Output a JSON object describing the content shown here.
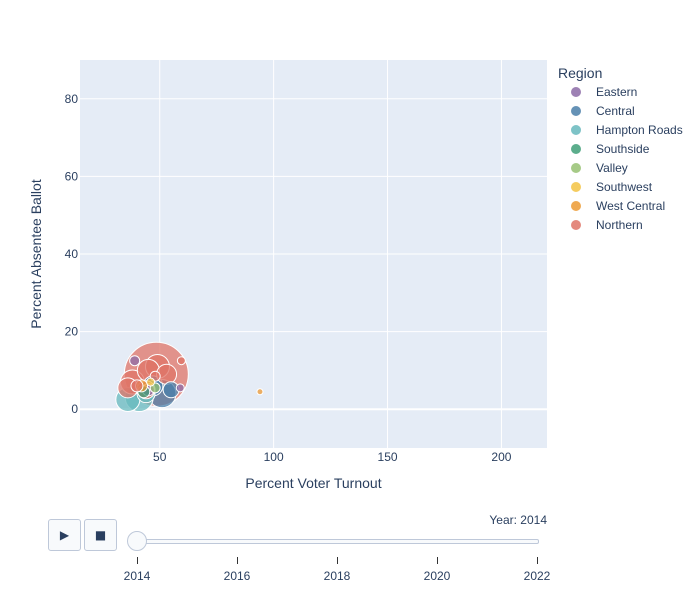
{
  "chart_data": {
    "type": "scatter",
    "xlabel": "Percent Voter Turnout",
    "ylabel": "Percent Absentee Ballot",
    "xlim": [
      15,
      220
    ],
    "ylim": [
      -10,
      90
    ],
    "xticks": [
      50,
      100,
      150,
      200
    ],
    "yticks": [
      0,
      20,
      40,
      60,
      80
    ],
    "grid": true,
    "legend": {
      "title": "Region",
      "placement": "right",
      "entries": [
        {
          "name": "Eastern",
          "color": "#8c6ba7"
        },
        {
          "name": "Central",
          "color": "#4a7fa9"
        },
        {
          "name": "Hampton Roads",
          "color": "#67b9bd"
        },
        {
          "name": "Southside",
          "color": "#3f9f78"
        },
        {
          "name": "Valley",
          "color": "#96c172"
        },
        {
          "name": "Southwest",
          "color": "#f3c343"
        },
        {
          "name": "West Central",
          "color": "#ec9a33"
        },
        {
          "name": "Northern",
          "color": "#df7467"
        }
      ]
    },
    "series": [
      {
        "name": "Eastern",
        "points": [
          {
            "x": 39,
            "y": 12.5,
            "size": 5
          },
          {
            "x": 59,
            "y": 5.5,
            "size": 4
          },
          {
            "x": 45,
            "y": 5,
            "size": 6
          }
        ]
      },
      {
        "name": "Central",
        "points": [
          {
            "x": 51,
            "y": 4,
            "size": 14
          },
          {
            "x": 47,
            "y": 6,
            "size": 10
          },
          {
            "x": 55,
            "y": 5,
            "size": 8
          }
        ]
      },
      {
        "name": "Hampton Roads",
        "points": [
          {
            "x": 36,
            "y": 2.5,
            "size": 12
          },
          {
            "x": 41,
            "y": 3,
            "size": 14
          },
          {
            "x": 44,
            "y": 4,
            "size": 9
          }
        ]
      },
      {
        "name": "Southside",
        "points": [
          {
            "x": 43,
            "y": 4.5,
            "size": 6
          }
        ]
      },
      {
        "name": "Valley",
        "points": [
          {
            "x": 48,
            "y": 5.5,
            "size": 5
          }
        ]
      },
      {
        "name": "Southwest",
        "points": [
          {
            "x": 46,
            "y": 7,
            "size": 4
          }
        ]
      },
      {
        "name": "West Central",
        "points": [
          {
            "x": 94,
            "y": 4.5,
            "size": 3
          },
          {
            "x": 42,
            "y": 6,
            "size": 6
          }
        ]
      },
      {
        "name": "Northern",
        "points": [
          {
            "x": 48.5,
            "y": 9,
            "size": 32
          },
          {
            "x": 38,
            "y": 7,
            "size": 12
          },
          {
            "x": 36,
            "y": 5.5,
            "size": 10
          },
          {
            "x": 45,
            "y": 10,
            "size": 11
          },
          {
            "x": 53,
            "y": 9,
            "size": 10
          },
          {
            "x": 49,
            "y": 11,
            "size": 12
          },
          {
            "x": 40,
            "y": 6,
            "size": 6
          },
          {
            "x": 44,
            "y": 5,
            "size": 9
          },
          {
            "x": 59.5,
            "y": 12.5,
            "size": 4
          },
          {
            "x": 48,
            "y": 8.5,
            "size": 5
          }
        ]
      }
    ]
  },
  "animation": {
    "current_label": "Year: 2014",
    "current_value": 2014,
    "range": [
      2014,
      2022
    ],
    "ticks": [
      "2014",
      "2016",
      "2018",
      "2020",
      "2022"
    ],
    "play_label": "▶",
    "stop_label": "■"
  }
}
